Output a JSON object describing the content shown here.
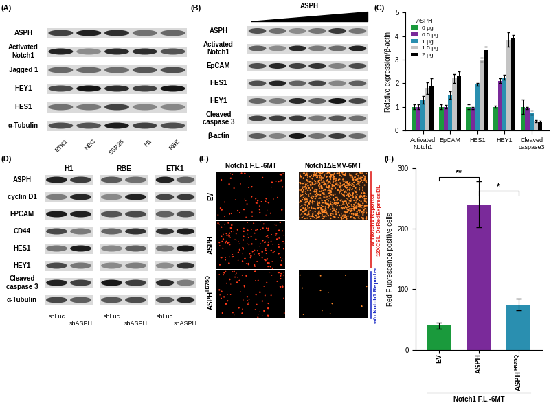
{
  "blots": [
    {
      "label": "(A)",
      "rows": [
        "ASPH",
        "Activated\nNotch1",
        "Jagged 1",
        "HEY1",
        "HES1",
        "α-Tubulin"
      ],
      "lanes": [
        "ETK1",
        "NEC",
        "SSP25",
        "H1",
        "RBE"
      ]
    },
    {
      "label": "(B)",
      "treatment": "ASPH",
      "rows": [
        "ASPH",
        "Activated\nNotch1",
        "EpCAM",
        "HES1",
        "HEY1",
        "Cleaved\ncaspase 3",
        "β-actin"
      ]
    },
    {
      "label": "(D)",
      "cell_lines": [
        "H1",
        "RBE",
        "ETK1"
      ],
      "rows": [
        "ASPH",
        "cyclin D1",
        "EPCAM",
        "CD44",
        "HES1",
        "HEY1",
        "Cleaved\ncaspase 3",
        "α-Tubulin"
      ],
      "lanes": [
        "shLuc",
        "shASPH"
      ]
    }
  ],
  "images": {
    "label": "(E)",
    "columns": [
      "Notch1 F.L.-6MT",
      "Notch1ΔEMV-6MT"
    ],
    "rows": [
      {
        "text": "EV"
      },
      {
        "text": "ASPH"
      },
      {
        "text": "ASPH",
        "superscript": "H675Q"
      }
    ],
    "reporter_labels": [
      {
        "text": "w/ Notch1 Reporter\n12XCSL-DsRedExpressDL",
        "color": "#e0201c"
      },
      {
        "text": "w/o Notch1 Reporter",
        "color": "#2434c8"
      }
    ]
  },
  "chart_data": [
    {
      "type": "bar",
      "label": "(C)",
      "categories": [
        "Activated\nNotch1",
        "EpCAM",
        "HES1",
        "HEY1",
        "Cleaved\ncaspase3"
      ],
      "legend_title": "ASPH",
      "legend": "upper left",
      "series": [
        {
          "name": "0 μg",
          "color": "#1a9a3c",
          "values": [
            1.0,
            1.0,
            1.0,
            1.0,
            1.0
          ],
          "errors": [
            0.1,
            0.1,
            0.1,
            0.05,
            0.3
          ]
        },
        {
          "name": "0.5 μg",
          "color": "#7a2a9a",
          "values": [
            1.0,
            1.0,
            0.95,
            2.1,
            0.95
          ],
          "errors": [
            0.1,
            0.08,
            0.05,
            0.1,
            0.05
          ]
        },
        {
          "name": "1 μg",
          "color": "#2a8fb0",
          "values": [
            1.3,
            1.5,
            1.95,
            2.25,
            0.75
          ],
          "errors": [
            0.15,
            0.15,
            0.05,
            0.1,
            0.08
          ]
        },
        {
          "name": "1.5 μg",
          "color": "#c4c4c4",
          "values": [
            1.8,
            2.2,
            3.0,
            3.85,
            0.4
          ],
          "errors": [
            0.25,
            0.2,
            0.1,
            0.3,
            0.05
          ]
        },
        {
          "name": "2 μg",
          "color": "#000000",
          "values": [
            1.9,
            2.3,
            3.4,
            3.9,
            0.35
          ],
          "errors": [
            0.3,
            0.2,
            0.15,
            0.15,
            0.05
          ]
        }
      ],
      "ylabel": "Relative expression/β-actin",
      "ylim": [
        0,
        5
      ],
      "yticks": [
        0,
        1,
        2,
        3,
        4,
        5
      ]
    },
    {
      "type": "bar",
      "label": "(F)",
      "categories": [
        "EV",
        "ASPH",
        "ASPH"
      ],
      "category_superscripts": [
        null,
        null,
        "H675Q"
      ],
      "values": [
        40,
        240,
        75
      ],
      "errors": [
        5,
        38,
        10
      ],
      "colors": [
        "#1a9a3c",
        "#7a2a9a",
        "#2a8fb0"
      ],
      "ylabel": "Red Fluorescence positive cells",
      "ylim": [
        0,
        300
      ],
      "yticks": [
        0,
        100,
        200,
        300
      ],
      "significance": [
        {
          "from": 0,
          "to": 1,
          "label": "**",
          "y": 285
        },
        {
          "from": 1,
          "to": 2,
          "label": "*",
          "y": 262
        }
      ],
      "group_label": "Notch1 F.L.-6MT"
    }
  ]
}
